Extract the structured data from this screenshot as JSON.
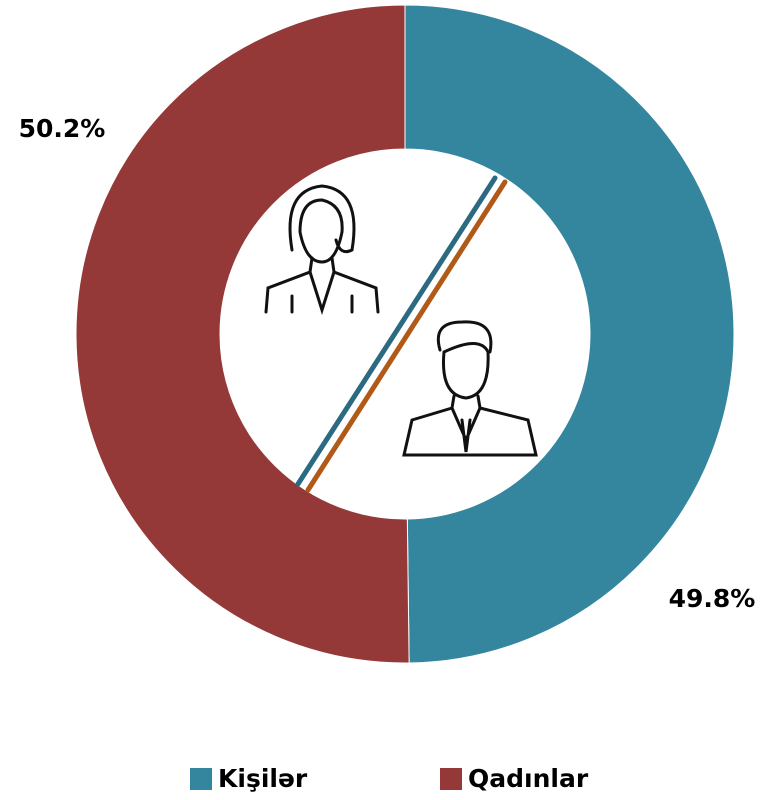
{
  "chart_data": {
    "type": "donut",
    "categories": [
      "Kişilər",
      "Qadınlar"
    ],
    "values": [
      49.8,
      50.2
    ],
    "value_labels": [
      "49.8%",
      "50.2%"
    ],
    "colors": [
      "#33869e",
      "#943838"
    ],
    "legend": "bottom"
  }
}
